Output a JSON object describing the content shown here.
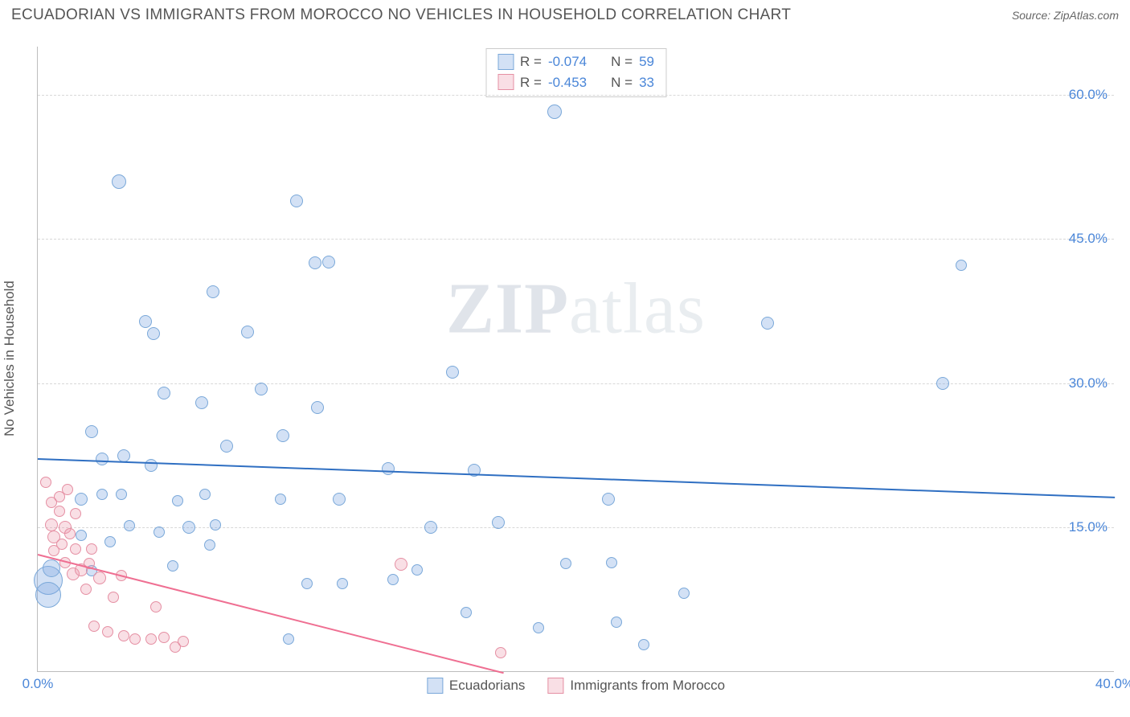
{
  "header": {
    "title": "ECUADORIAN VS IMMIGRANTS FROM MOROCCO NO VEHICLES IN HOUSEHOLD CORRELATION CHART",
    "source_prefix": "Source: ",
    "source_name": "ZipAtlas.com"
  },
  "watermark": {
    "zip": "ZIP",
    "atlas": "atlas"
  },
  "chart": {
    "type": "scatter",
    "yaxis_label": "No Vehicles in Household",
    "xlim": [
      0,
      40
    ],
    "ylim": [
      0,
      65
    ],
    "yticks": [
      {
        "v": 15,
        "label": "15.0%"
      },
      {
        "v": 30,
        "label": "30.0%"
      },
      {
        "v": 45,
        "label": "45.0%"
      },
      {
        "v": 60,
        "label": "60.0%"
      }
    ],
    "xticks": [
      {
        "v": 0,
        "label": "0.0%"
      },
      {
        "v": 40,
        "label": "40.0%"
      }
    ],
    "grid_color": "#d8d8d8",
    "background_color": "#ffffff",
    "series": [
      {
        "name": "Ecuadorians",
        "fill": "rgba(130,170,225,0.35)",
        "stroke": "#7aa8d9",
        "line_color": "#2f6fc2",
        "R": "-0.074",
        "N": "59",
        "trend": {
          "x1": 0,
          "y1": 22.2,
          "x2": 40,
          "y2": 18.2
        },
        "points": [
          {
            "x": 0.4,
            "y": 9.5,
            "r": 18
          },
          {
            "x": 0.4,
            "y": 8.0,
            "r": 16
          },
          {
            "x": 0.5,
            "y": 10.8,
            "r": 11
          },
          {
            "x": 1.6,
            "y": 18.0,
            "r": 8
          },
          {
            "x": 1.6,
            "y": 14.2,
            "r": 7
          },
          {
            "x": 2.0,
            "y": 25.0,
            "r": 8
          },
          {
            "x": 2.0,
            "y": 10.5,
            "r": 7
          },
          {
            "x": 2.4,
            "y": 22.1,
            "r": 8
          },
          {
            "x": 2.4,
            "y": 18.5,
            "r": 7
          },
          {
            "x": 2.7,
            "y": 13.5,
            "r": 7
          },
          {
            "x": 3.0,
            "y": 51.0,
            "r": 9
          },
          {
            "x": 3.1,
            "y": 18.5,
            "r": 7
          },
          {
            "x": 3.2,
            "y": 22.5,
            "r": 8
          },
          {
            "x": 3.4,
            "y": 15.2,
            "r": 7
          },
          {
            "x": 4.0,
            "y": 36.4,
            "r": 8
          },
          {
            "x": 4.2,
            "y": 21.5,
            "r": 8
          },
          {
            "x": 4.3,
            "y": 35.2,
            "r": 8
          },
          {
            "x": 4.5,
            "y": 14.5,
            "r": 7
          },
          {
            "x": 4.7,
            "y": 29.0,
            "r": 8
          },
          {
            "x": 5.0,
            "y": 11.0,
            "r": 7
          },
          {
            "x": 5.2,
            "y": 17.8,
            "r": 7
          },
          {
            "x": 5.6,
            "y": 15.0,
            "r": 8
          },
          {
            "x": 6.1,
            "y": 28.0,
            "r": 8
          },
          {
            "x": 6.2,
            "y": 18.5,
            "r": 7
          },
          {
            "x": 6.4,
            "y": 13.2,
            "r": 7
          },
          {
            "x": 6.5,
            "y": 39.5,
            "r": 8
          },
          {
            "x": 6.6,
            "y": 15.3,
            "r": 7
          },
          {
            "x": 7.0,
            "y": 23.5,
            "r": 8
          },
          {
            "x": 7.8,
            "y": 35.3,
            "r": 8
          },
          {
            "x": 8.3,
            "y": 29.4,
            "r": 8
          },
          {
            "x": 9.0,
            "y": 18.0,
            "r": 7
          },
          {
            "x": 9.1,
            "y": 24.6,
            "r": 8
          },
          {
            "x": 9.3,
            "y": 3.4,
            "r": 7
          },
          {
            "x": 9.6,
            "y": 49.0,
            "r": 8
          },
          {
            "x": 10.0,
            "y": 9.2,
            "r": 7
          },
          {
            "x": 10.3,
            "y": 42.5,
            "r": 8
          },
          {
            "x": 10.4,
            "y": 27.5,
            "r": 8
          },
          {
            "x": 10.8,
            "y": 42.6,
            "r": 8
          },
          {
            "x": 11.2,
            "y": 18.0,
            "r": 8
          },
          {
            "x": 11.3,
            "y": 9.2,
            "r": 7
          },
          {
            "x": 13.0,
            "y": 21.1,
            "r": 8
          },
          {
            "x": 13.2,
            "y": 9.6,
            "r": 7
          },
          {
            "x": 14.1,
            "y": 10.6,
            "r": 7
          },
          {
            "x": 14.6,
            "y": 15.0,
            "r": 8
          },
          {
            "x": 15.4,
            "y": 31.2,
            "r": 8
          },
          {
            "x": 15.9,
            "y": 6.2,
            "r": 7
          },
          {
            "x": 16.2,
            "y": 21.0,
            "r": 8
          },
          {
            "x": 17.1,
            "y": 15.5,
            "r": 8
          },
          {
            "x": 18.6,
            "y": 4.6,
            "r": 7
          },
          {
            "x": 19.2,
            "y": 58.2,
            "r": 9
          },
          {
            "x": 19.6,
            "y": 11.3,
            "r": 7
          },
          {
            "x": 21.2,
            "y": 18.0,
            "r": 8
          },
          {
            "x": 21.3,
            "y": 11.4,
            "r": 7
          },
          {
            "x": 21.5,
            "y": 5.2,
            "r": 7
          },
          {
            "x": 22.5,
            "y": 2.8,
            "r": 7
          },
          {
            "x": 24.0,
            "y": 8.2,
            "r": 7
          },
          {
            "x": 27.1,
            "y": 36.3,
            "r": 8
          },
          {
            "x": 33.6,
            "y": 30.0,
            "r": 8
          },
          {
            "x": 34.3,
            "y": 42.3,
            "r": 7
          }
        ]
      },
      {
        "name": "Immigrants from Morocco",
        "fill": "rgba(235,150,170,0.30)",
        "stroke": "#e58fa3",
        "line_color": "#ef6f92",
        "R": "-0.453",
        "N": "33",
        "trend": {
          "x1": 0,
          "y1": 12.3,
          "x2": 17.3,
          "y2": 0
        },
        "points": [
          {
            "x": 0.3,
            "y": 19.7,
            "r": 7
          },
          {
            "x": 0.5,
            "y": 17.6,
            "r": 7
          },
          {
            "x": 0.5,
            "y": 15.3,
            "r": 8
          },
          {
            "x": 0.6,
            "y": 14.0,
            "r": 8
          },
          {
            "x": 0.6,
            "y": 12.6,
            "r": 7
          },
          {
            "x": 0.8,
            "y": 18.2,
            "r": 7
          },
          {
            "x": 0.8,
            "y": 16.7,
            "r": 7
          },
          {
            "x": 0.9,
            "y": 13.3,
            "r": 7
          },
          {
            "x": 1.0,
            "y": 15.0,
            "r": 8
          },
          {
            "x": 1.0,
            "y": 11.4,
            "r": 7
          },
          {
            "x": 1.1,
            "y": 19.0,
            "r": 7
          },
          {
            "x": 1.2,
            "y": 14.4,
            "r": 7
          },
          {
            "x": 1.3,
            "y": 10.2,
            "r": 8
          },
          {
            "x": 1.4,
            "y": 12.8,
            "r": 7
          },
          {
            "x": 1.4,
            "y": 16.5,
            "r": 7
          },
          {
            "x": 1.6,
            "y": 10.6,
            "r": 8
          },
          {
            "x": 1.8,
            "y": 8.6,
            "r": 7
          },
          {
            "x": 1.9,
            "y": 11.3,
            "r": 7
          },
          {
            "x": 2.0,
            "y": 12.8,
            "r": 7
          },
          {
            "x": 2.1,
            "y": 4.8,
            "r": 7
          },
          {
            "x": 2.3,
            "y": 9.8,
            "r": 8
          },
          {
            "x": 2.6,
            "y": 4.2,
            "r": 7
          },
          {
            "x": 2.8,
            "y": 7.8,
            "r": 7
          },
          {
            "x": 3.1,
            "y": 10.0,
            "r": 7
          },
          {
            "x": 3.2,
            "y": 3.8,
            "r": 7
          },
          {
            "x": 3.6,
            "y": 3.4,
            "r": 7
          },
          {
            "x": 4.2,
            "y": 3.4,
            "r": 7
          },
          {
            "x": 4.4,
            "y": 6.8,
            "r": 7
          },
          {
            "x": 4.7,
            "y": 3.6,
            "r": 7
          },
          {
            "x": 5.1,
            "y": 2.6,
            "r": 7
          },
          {
            "x": 5.4,
            "y": 3.2,
            "r": 7
          },
          {
            "x": 13.5,
            "y": 11.2,
            "r": 8
          },
          {
            "x": 17.2,
            "y": 2.0,
            "r": 7
          }
        ]
      }
    ]
  },
  "legend": {
    "r_label": "R = ",
    "n_label": "N = "
  }
}
